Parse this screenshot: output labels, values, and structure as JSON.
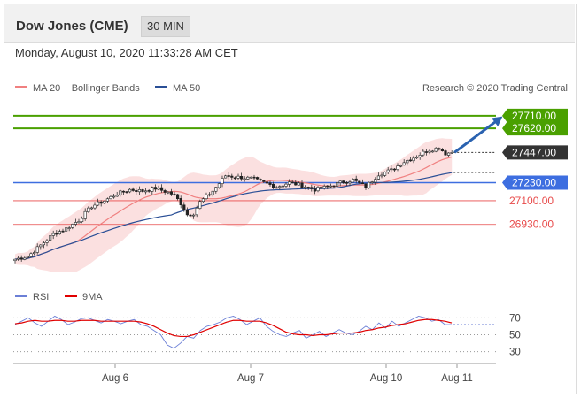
{
  "header": {
    "title": "Dow Jones (CME)",
    "timeframe": "30 MIN"
  },
  "timestamp": "Monday, August 10, 2020 11:33:28 AM CET",
  "legend": {
    "ma_bands": {
      "label": "MA 20 + Bollinger Bands",
      "color": "#f08080"
    },
    "ma50": {
      "label": "MA 50",
      "color": "#2a4f96"
    },
    "rsi": {
      "label": "RSI",
      "color": "#6b7fd6"
    },
    "ma9": {
      "label": "9MA",
      "color": "#e00000"
    }
  },
  "copyright": "Research © 2020 Trading Central",
  "colors": {
    "bull": "#2e7d32",
    "bear": "#b71c1c",
    "target": "#4aa000",
    "support": "#e84a4a",
    "pivot": "#3d6ee0",
    "arrow": "#2a62b0"
  },
  "chart_data": [
    {
      "type": "candlestick",
      "x_labels": [
        "Aug 6",
        "Aug 7",
        "Aug 10",
        "Aug 11"
      ],
      "ylim": [
        26560,
        27830
      ],
      "levels": [
        {
          "label": "27710.00",
          "value": 27710,
          "kind": "target"
        },
        {
          "label": "27620.00",
          "value": 27620,
          "kind": "target"
        },
        {
          "label": "27447.00",
          "value": 27447,
          "kind": "current"
        },
        {
          "label": "27230.00",
          "value": 27230,
          "kind": "pivot"
        },
        {
          "label": "27100.00",
          "value": 27100,
          "kind": "support"
        },
        {
          "label": "26930.00",
          "value": 26930,
          "kind": "support"
        }
      ],
      "series": [
        {
          "name": "MA 20 + Bollinger Bands"
        },
        {
          "name": "MA 50"
        }
      ],
      "close_anchors": [
        [
          0,
          26680
        ],
        [
          4,
          26700
        ],
        [
          8,
          26780
        ],
        [
          12,
          26860
        ],
        [
          16,
          26900
        ],
        [
          20,
          26960
        ],
        [
          24,
          27060
        ],
        [
          28,
          27100
        ],
        [
          32,
          27150
        ],
        [
          36,
          27180
        ],
        [
          40,
          27170
        ],
        [
          44,
          27190
        ],
        [
          48,
          27160
        ],
        [
          50,
          27140
        ],
        [
          52,
          27080
        ],
        [
          54,
          27000
        ],
        [
          56,
          27010
        ],
        [
          58,
          27090
        ],
        [
          62,
          27170
        ],
        [
          66,
          27280
        ],
        [
          70,
          27270
        ],
        [
          74,
          27260
        ],
        [
          78,
          27230
        ],
        [
          82,
          27200
        ],
        [
          86,
          27230
        ],
        [
          90,
          27210
        ],
        [
          94,
          27180
        ],
        [
          98,
          27200
        ],
        [
          102,
          27230
        ],
        [
          106,
          27250
        ],
        [
          110,
          27200
        ],
        [
          114,
          27290
        ],
        [
          118,
          27320
        ],
        [
          122,
          27380
        ],
        [
          126,
          27420
        ],
        [
          129,
          27460
        ],
        [
          133,
          27480
        ],
        [
          135,
          27440
        ],
        [
          137,
          27447
        ]
      ],
      "trend_arrow": {
        "from": [
          137,
          27447
        ],
        "to": [
          152,
          27690
        ]
      }
    },
    {
      "type": "line",
      "title": "RSI",
      "ylim": [
        15,
        85
      ],
      "y_ticks": [
        70,
        50,
        30
      ],
      "series": [
        {
          "name": "RSI",
          "values": [
            62,
            66,
            70,
            64,
            60,
            66,
            72,
            68,
            62,
            65,
            69,
            70,
            67,
            64,
            68,
            66,
            63,
            66,
            68,
            62,
            60,
            55,
            50,
            38,
            34,
            40,
            48,
            46,
            55,
            60,
            62,
            65,
            70,
            72,
            68,
            62,
            66,
            70,
            60,
            54,
            50,
            48,
            52,
            55,
            46,
            50,
            54,
            48,
            52,
            56,
            52,
            50,
            54,
            60,
            56,
            64,
            58,
            66,
            60,
            64,
            68,
            72,
            70,
            66,
            68,
            62,
            62
          ]
        },
        {
          "name": "9MA",
          "values": [
            63,
            64,
            66,
            67,
            66,
            66,
            67,
            67,
            66,
            66,
            67,
            67,
            67,
            66,
            66,
            66,
            66,
            66,
            66,
            65,
            63,
            60,
            56,
            52,
            49,
            48,
            48,
            50,
            53,
            56,
            59,
            62,
            65,
            67,
            67,
            66,
            66,
            66,
            64,
            61,
            57,
            53,
            51,
            50,
            50,
            49,
            50,
            50,
            51,
            52,
            52,
            52,
            53,
            55,
            56,
            58,
            59,
            61,
            62,
            63,
            65,
            67,
            68,
            68,
            67,
            66,
            64
          ]
        }
      ]
    }
  ]
}
